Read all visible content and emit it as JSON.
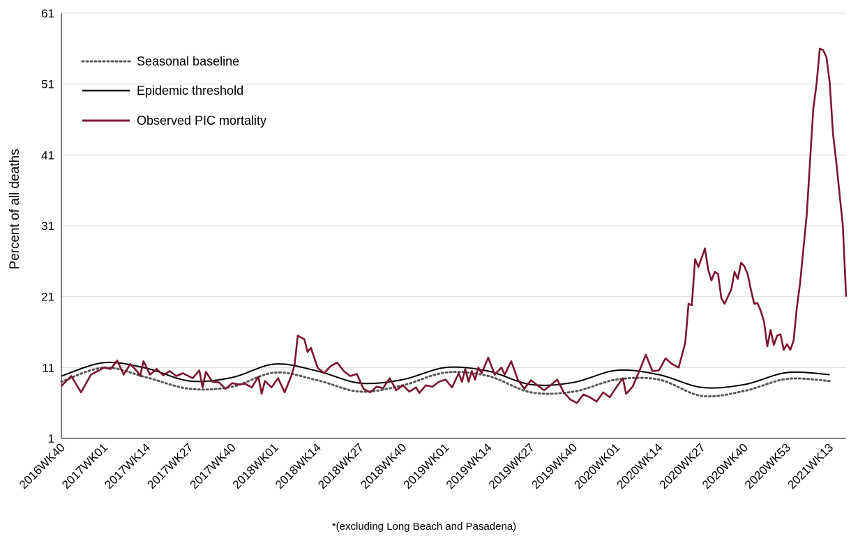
{
  "chart_data": {
    "type": "line",
    "title": "",
    "xlabel": "",
    "ylabel": "Percent of all deaths",
    "footnote": "*(excluding Long Beach and Pasadena)",
    "ylim": [
      1,
      61
    ],
    "yticks": [
      "1",
      "11",
      "21",
      "31",
      "41",
      "51",
      "61"
    ],
    "x_tick_labels": [
      "2016WK40",
      "2017WK01",
      "2017WK14",
      "2017WK27",
      "2017WK40",
      "2018WK01",
      "2018WK14",
      "2018WK27",
      "2018WK40",
      "2019WK01",
      "2019WK14",
      "2019WK27",
      "2019WK40",
      "2020WK01",
      "2020WK14",
      "2020WK27",
      "2020WK40",
      "2020WK53",
      "2021WK13"
    ],
    "grid": "horizontal",
    "legend_position": "top-left",
    "colors": {
      "baseline": "#555555",
      "threshold": "#000000",
      "observed": "#7b1530",
      "grid": "#d9d9d9"
    },
    "series": [
      {
        "name": "Seasonal baseline",
        "style": "dotted",
        "points": [
          [
            0,
            9.0
          ],
          [
            13,
            11.0
          ],
          [
            26,
            9.6
          ],
          [
            39,
            8.0
          ],
          [
            52,
            8.3
          ],
          [
            65,
            10.3
          ],
          [
            78,
            9.2
          ],
          [
            91,
            7.6
          ],
          [
            104,
            8.5
          ],
          [
            117,
            10.3
          ],
          [
            130,
            9.8
          ],
          [
            143,
            7.5
          ],
          [
            156,
            7.6
          ],
          [
            169,
            9.3
          ],
          [
            182,
            9.3
          ],
          [
            195,
            7.0
          ],
          [
            208,
            7.7
          ],
          [
            221,
            9.4
          ],
          [
            234,
            9.1
          ]
        ]
      },
      {
        "name": "Epidemic threshold",
        "style": "solid",
        "points": [
          [
            0,
            9.8
          ],
          [
            13,
            11.7
          ],
          [
            26,
            10.9
          ],
          [
            39,
            9.1
          ],
          [
            52,
            9.6
          ],
          [
            65,
            11.5
          ],
          [
            78,
            10.5
          ],
          [
            91,
            8.8
          ],
          [
            104,
            9.3
          ],
          [
            117,
            11.0
          ],
          [
            130,
            10.5
          ],
          [
            143,
            8.6
          ],
          [
            156,
            8.9
          ],
          [
            169,
            10.6
          ],
          [
            182,
            10.0
          ],
          [
            195,
            8.2
          ],
          [
            208,
            8.6
          ],
          [
            221,
            10.3
          ],
          [
            234,
            10.0
          ]
        ]
      },
      {
        "name": "Observed PIC mortality",
        "style": "solid",
        "points": [
          [
            0,
            8.4
          ],
          [
            3,
            9.8
          ],
          [
            6,
            7.5
          ],
          [
            9,
            10.0
          ],
          [
            13,
            11.0
          ],
          [
            15,
            10.8
          ],
          [
            17,
            12.0
          ],
          [
            19,
            10.0
          ],
          [
            21,
            11.5
          ],
          [
            23,
            10.5
          ],
          [
            24,
            9.8
          ],
          [
            25,
            11.9
          ],
          [
            27,
            10.0
          ],
          [
            29,
            10.8
          ],
          [
            31,
            9.9
          ],
          [
            33,
            10.5
          ],
          [
            35,
            9.8
          ],
          [
            37,
            10.2
          ],
          [
            40,
            9.5
          ],
          [
            42,
            10.6
          ],
          [
            43,
            8.2
          ],
          [
            44,
            10.4
          ],
          [
            46,
            9.0
          ],
          [
            48,
            8.9
          ],
          [
            50,
            8.0
          ],
          [
            52,
            8.8
          ],
          [
            54,
            8.6
          ],
          [
            56,
            8.7
          ],
          [
            58,
            8.2
          ],
          [
            60,
            9.7
          ],
          [
            61,
            7.3
          ],
          [
            62,
            9.1
          ],
          [
            64,
            8.2
          ],
          [
            66,
            9.5
          ],
          [
            68,
            7.5
          ],
          [
            70,
            9.8
          ],
          [
            71,
            11.3
          ],
          [
            72,
            15.5
          ],
          [
            74,
            15.0
          ],
          [
            75,
            13.2
          ],
          [
            76,
            13.8
          ],
          [
            78,
            11.0
          ],
          [
            80,
            10.2
          ],
          [
            82,
            11.2
          ],
          [
            84,
            11.7
          ],
          [
            86,
            10.5
          ],
          [
            88,
            9.8
          ],
          [
            90,
            10.1
          ],
          [
            92,
            8.0
          ],
          [
            94,
            7.5
          ],
          [
            96,
            8.3
          ],
          [
            98,
            8.1
          ],
          [
            100,
            9.5
          ],
          [
            102,
            7.8
          ],
          [
            104,
            8.5
          ],
          [
            106,
            7.6
          ],
          [
            108,
            8.2
          ],
          [
            109,
            7.4
          ],
          [
            111,
            8.5
          ],
          [
            113,
            8.3
          ],
          [
            115,
            9.0
          ],
          [
            117,
            9.3
          ],
          [
            119,
            8.2
          ],
          [
            121,
            10.2
          ],
          [
            122,
            9.0
          ],
          [
            123,
            10.8
          ],
          [
            124,
            9.0
          ],
          [
            125,
            10.5
          ],
          [
            126,
            9.3
          ],
          [
            127,
            11.0
          ],
          [
            128,
            10.2
          ],
          [
            130,
            12.4
          ],
          [
            132,
            10.0
          ],
          [
            134,
            11.0
          ],
          [
            135,
            10.0
          ],
          [
            137,
            11.9
          ],
          [
            139,
            9.3
          ],
          [
            141,
            8.0
          ],
          [
            143,
            9.2
          ],
          [
            145,
            8.5
          ],
          [
            147,
            7.8
          ],
          [
            149,
            8.5
          ],
          [
            151,
            9.3
          ],
          [
            153,
            7.5
          ],
          [
            155,
            6.5
          ],
          [
            157,
            6.0
          ],
          [
            159,
            7.2
          ],
          [
            161,
            6.8
          ],
          [
            163,
            6.2
          ],
          [
            165,
            7.5
          ],
          [
            167,
            6.8
          ],
          [
            169,
            8.2
          ],
          [
            171,
            9.5
          ],
          [
            172,
            7.3
          ],
          [
            174,
            8.3
          ],
          [
            176,
            10.5
          ],
          [
            178,
            12.8
          ],
          [
            180,
            10.5
          ],
          [
            182,
            10.6
          ],
          [
            184,
            12.3
          ],
          [
            186,
            11.5
          ],
          [
            188,
            11.0
          ],
          [
            190,
            14.5
          ],
          [
            191,
            20.0
          ],
          [
            192,
            19.8
          ],
          [
            193,
            26.3
          ],
          [
            194,
            25.2
          ],
          [
            196,
            27.8
          ],
          [
            197,
            24.8
          ],
          [
            198,
            23.3
          ],
          [
            199,
            24.5
          ],
          [
            200,
            24.2
          ],
          [
            201,
            20.8
          ],
          [
            202,
            20.0
          ],
          [
            203,
            21.0
          ],
          [
            204,
            22.0
          ],
          [
            205,
            24.5
          ],
          [
            206,
            23.5
          ],
          [
            207,
            25.8
          ],
          [
            208,
            25.3
          ],
          [
            209,
            24.2
          ],
          [
            210,
            22.0
          ],
          [
            211,
            20.0
          ],
          [
            212,
            20.1
          ],
          [
            213,
            19.0
          ],
          [
            214,
            17.5
          ],
          [
            215,
            14.0
          ],
          [
            216,
            16.3
          ],
          [
            217,
            14.2
          ],
          [
            218,
            15.5
          ],
          [
            219,
            15.7
          ],
          [
            220,
            13.5
          ],
          [
            221,
            14.3
          ],
          [
            222,
            13.5
          ],
          [
            223,
            14.8
          ],
          [
            224,
            19.5
          ],
          [
            225,
            23.0
          ],
          [
            226,
            27.8
          ],
          [
            227,
            32.5
          ],
          [
            228,
            40.0
          ],
          [
            229,
            47.5
          ],
          [
            230,
            51.0
          ],
          [
            231,
            56.0
          ],
          [
            232,
            55.8
          ],
          [
            233,
            54.8
          ],
          [
            234,
            51.2
          ],
          [
            235,
            44.0
          ],
          [
            236,
            40.0
          ],
          [
            237,
            35.5
          ],
          [
            238,
            31.0
          ],
          [
            239,
            21.0
          ]
        ]
      }
    ]
  }
}
